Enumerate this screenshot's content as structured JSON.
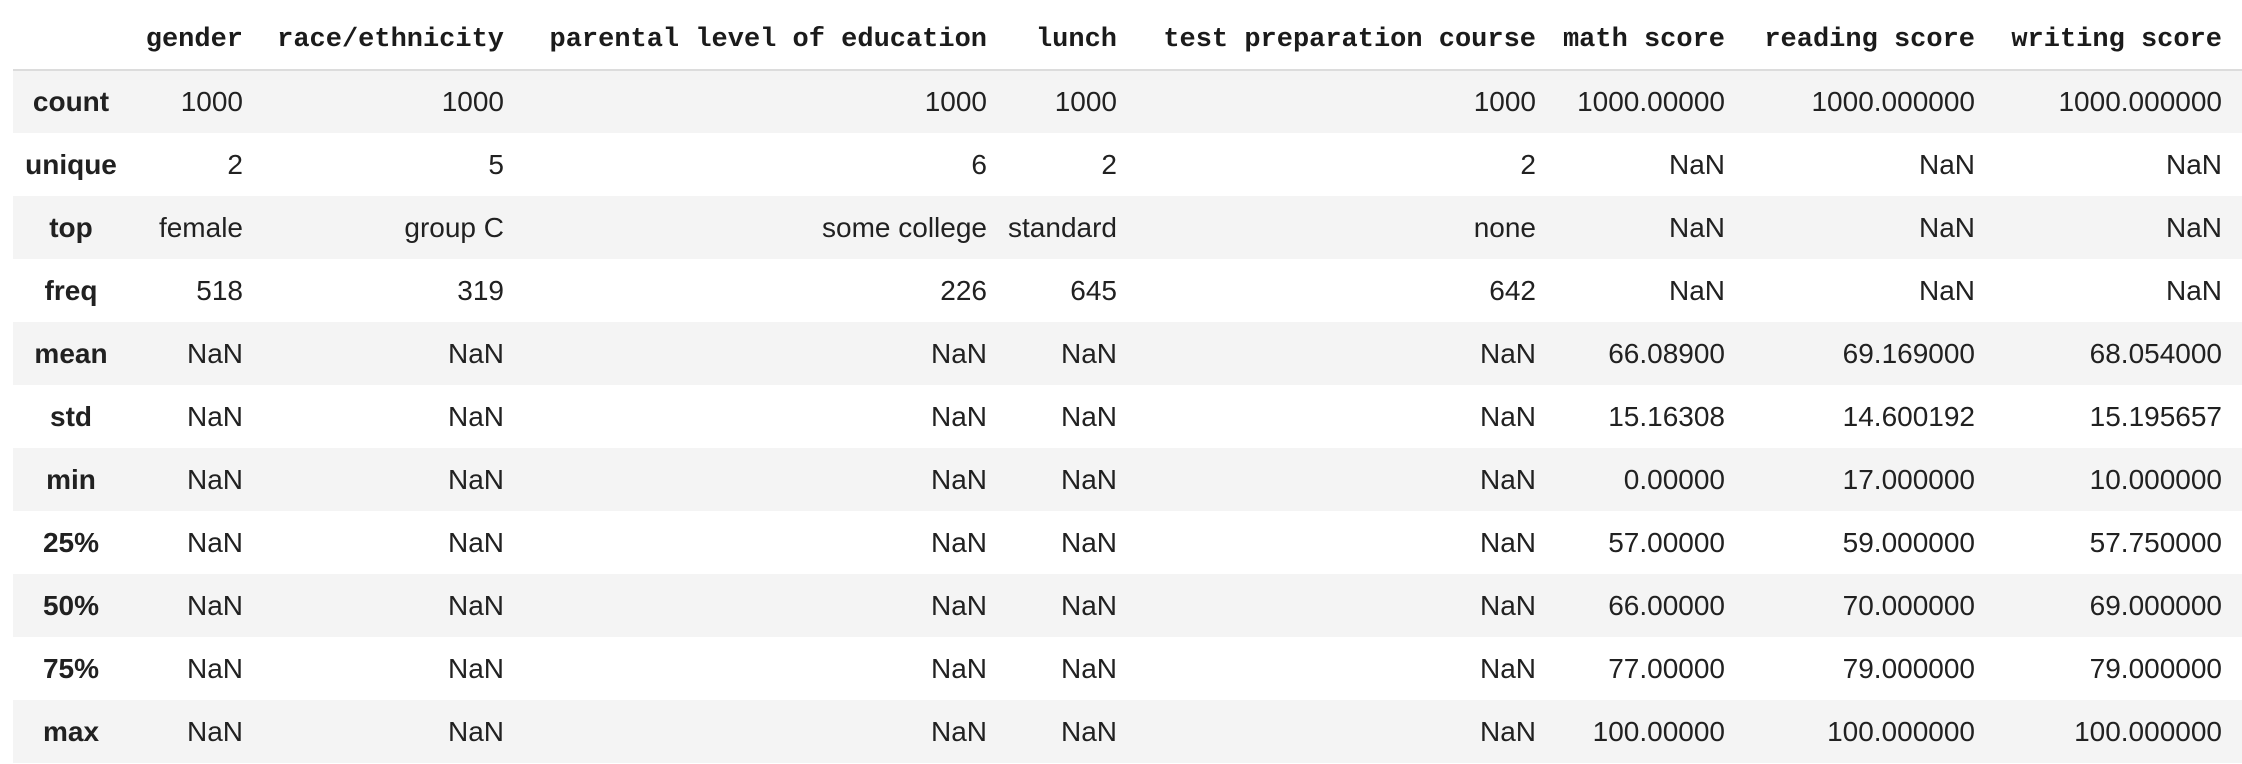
{
  "table": {
    "columns": [
      "gender",
      "race/ethnicity",
      "parental level of education",
      "lunch",
      "test preparation course",
      "math score",
      "reading score",
      "writing score"
    ],
    "rows": [
      {
        "index": "count",
        "values": [
          "1000",
          "1000",
          "1000",
          "1000",
          "1000",
          "1000.00000",
          "1000.000000",
          "1000.000000"
        ]
      },
      {
        "index": "unique",
        "values": [
          "2",
          "5",
          "6",
          "2",
          "2",
          "NaN",
          "NaN",
          "NaN"
        ]
      },
      {
        "index": "top",
        "values": [
          "female",
          "group C",
          "some college",
          "standard",
          "none",
          "NaN",
          "NaN",
          "NaN"
        ]
      },
      {
        "index": "freq",
        "values": [
          "518",
          "319",
          "226",
          "645",
          "642",
          "NaN",
          "NaN",
          "NaN"
        ]
      },
      {
        "index": "mean",
        "values": [
          "NaN",
          "NaN",
          "NaN",
          "NaN",
          "NaN",
          "66.08900",
          "69.169000",
          "68.054000"
        ]
      },
      {
        "index": "std",
        "values": [
          "NaN",
          "NaN",
          "NaN",
          "NaN",
          "NaN",
          "15.16308",
          "14.600192",
          "15.195657"
        ]
      },
      {
        "index": "min",
        "values": [
          "NaN",
          "NaN",
          "NaN",
          "NaN",
          "NaN",
          "0.00000",
          "17.000000",
          "10.000000"
        ]
      },
      {
        "index": "25%",
        "values": [
          "NaN",
          "NaN",
          "NaN",
          "NaN",
          "NaN",
          "57.00000",
          "59.000000",
          "57.750000"
        ]
      },
      {
        "index": "50%",
        "values": [
          "NaN",
          "NaN",
          "NaN",
          "NaN",
          "NaN",
          "66.00000",
          "70.000000",
          "69.000000"
        ]
      },
      {
        "index": "75%",
        "values": [
          "NaN",
          "NaN",
          "NaN",
          "NaN",
          "NaN",
          "77.00000",
          "79.000000",
          "79.000000"
        ]
      },
      {
        "index": "max",
        "values": [
          "NaN",
          "NaN",
          "NaN",
          "NaN",
          "NaN",
          "100.00000",
          "100.000000",
          "100.000000"
        ]
      }
    ]
  },
  "colors": {
    "stripe": "#f4f4f4",
    "header_border": "#dcdcdc",
    "text": "#212121"
  }
}
